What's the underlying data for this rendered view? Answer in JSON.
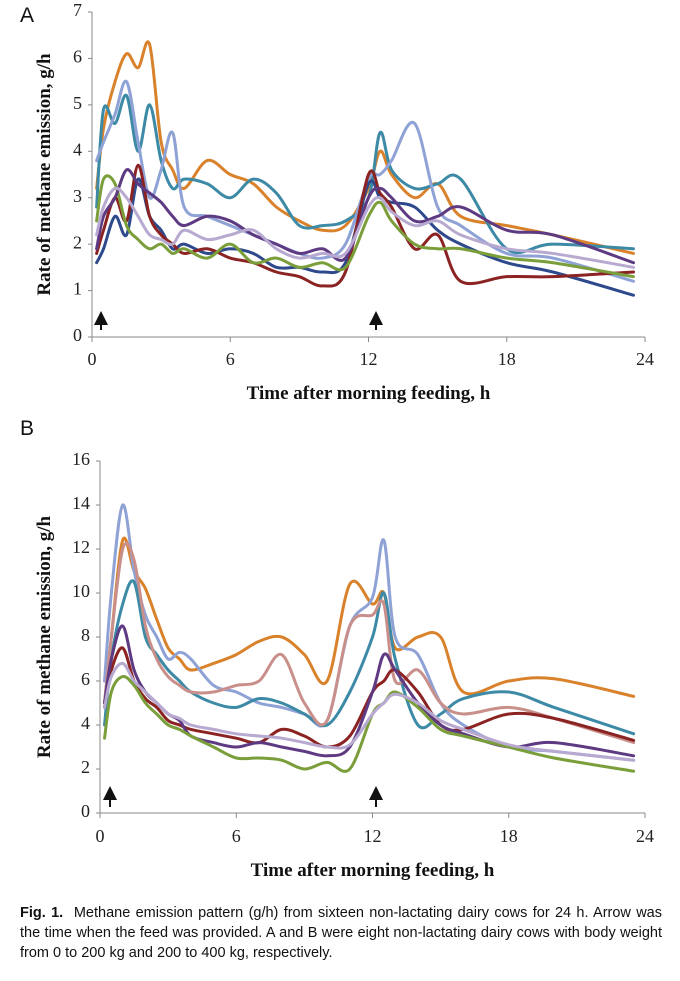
{
  "chart_data": [
    {
      "type": "line",
      "panel": "A",
      "x_label": "Time after morning feeding, h",
      "y_label": "Rate of methane emission, g/h",
      "xlim": [
        0,
        24
      ],
      "xticks": [
        0,
        6,
        12,
        18,
        24
      ],
      "ylim": [
        0,
        7
      ],
      "yticks": [
        0,
        1,
        2,
        3,
        4,
        5,
        6,
        7
      ],
      "x": [
        0.2,
        0.5,
        1,
        1.5,
        2,
        2.5,
        3,
        3.5,
        4,
        5,
        6,
        7,
        8,
        9,
        10,
        11,
        12,
        12.5,
        13,
        14,
        15,
        16,
        18,
        20,
        23.5
      ],
      "series": [
        {
          "color": "#d9822b",
          "values": [
            3.2,
            4.5,
            5.5,
            6.1,
            5.8,
            6.3,
            4.2,
            3.6,
            3.2,
            3.8,
            3.5,
            3.3,
            2.8,
            2.5,
            2.3,
            2.4,
            3.2,
            4.0,
            3.5,
            3.0,
            3.3,
            2.6,
            2.4,
            2.2,
            1.8
          ]
        },
        {
          "color": "#3d8aa6",
          "values": [
            2.8,
            4.9,
            4.6,
            5.2,
            4.0,
            5.0,
            3.8,
            3.2,
            3.4,
            3.3,
            3.0,
            3.4,
            3.1,
            2.4,
            2.4,
            2.5,
            3.0,
            4.4,
            3.6,
            3.2,
            3.3,
            3.4,
            1.9,
            2.0,
            1.9
          ]
        },
        {
          "color": "#8fa2d6",
          "values": [
            3.8,
            4.2,
            4.8,
            5.5,
            4.2,
            3.0,
            3.6,
            4.4,
            2.8,
            2.6,
            2.4,
            2.2,
            2.0,
            1.8,
            1.7,
            2.0,
            3.4,
            3.5,
            3.8,
            4.6,
            2.8,
            2.4,
            1.8,
            1.7,
            1.2
          ]
        },
        {
          "color": "#2e4a8c",
          "values": [
            1.6,
            1.9,
            2.6,
            2.2,
            3.4,
            2.6,
            2.3,
            1.9,
            2.0,
            1.8,
            1.9,
            1.8,
            1.5,
            1.5,
            1.4,
            1.6,
            3.3,
            3.0,
            2.9,
            2.8,
            2.3,
            2.0,
            1.6,
            1.4,
            0.9
          ]
        },
        {
          "color": "#8b2323",
          "values": [
            1.8,
            2.3,
            3.0,
            2.5,
            3.7,
            2.6,
            2.2,
            2.0,
            1.8,
            1.9,
            1.7,
            1.6,
            1.4,
            1.3,
            1.1,
            1.4,
            3.5,
            3.1,
            2.8,
            1.9,
            2.2,
            1.2,
            1.3,
            1.3,
            1.4
          ]
        },
        {
          "color": "#7a9e3a",
          "values": [
            2.5,
            3.4,
            3.3,
            2.4,
            2.1,
            1.9,
            2.0,
            1.8,
            1.9,
            1.7,
            2.0,
            1.6,
            1.7,
            1.5,
            1.6,
            1.5,
            2.6,
            2.9,
            2.5,
            2.0,
            1.9,
            1.9,
            1.7,
            1.6,
            1.3
          ]
        },
        {
          "color": "#5e3a83",
          "values": [
            1.9,
            2.6,
            3.0,
            3.6,
            3.3,
            3.1,
            2.9,
            2.6,
            2.4,
            2.6,
            2.5,
            2.2,
            2.0,
            1.8,
            1.9,
            1.7,
            3.0,
            3.2,
            3.0,
            2.5,
            2.6,
            2.8,
            2.3,
            2.2,
            1.6
          ]
        },
        {
          "color": "#b8a9d0",
          "values": [
            2.2,
            2.8,
            3.2,
            3.0,
            2.6,
            2.2,
            2.1,
            2.0,
            2.3,
            2.1,
            2.2,
            2.3,
            1.9,
            1.7,
            1.8,
            1.8,
            2.8,
            3.0,
            2.7,
            2.4,
            2.5,
            2.2,
            1.9,
            1.8,
            1.5
          ]
        }
      ]
    },
    {
      "type": "line",
      "panel": "B",
      "x_label": "Time after morning feeding, h",
      "y_label": "Rate of methane emission, g/h",
      "xlim": [
        0,
        24
      ],
      "xticks": [
        0,
        6,
        12,
        18,
        24
      ],
      "ylim": [
        0,
        16
      ],
      "yticks": [
        0,
        2,
        4,
        6,
        8,
        10,
        12,
        14,
        16
      ],
      "x": [
        0.2,
        0.5,
        1,
        1.5,
        2,
        2.5,
        3,
        3.5,
        4,
        5,
        6,
        7,
        8,
        9,
        10,
        11,
        12,
        12.5,
        13,
        14,
        15,
        16,
        18,
        20,
        23.5
      ],
      "series": [
        {
          "color": "#d9822b",
          "values": [
            5,
            8,
            12.4,
            11,
            10.2,
            8.8,
            7.5,
            7.0,
            6.5,
            6.8,
            7.2,
            7.8,
            8.0,
            7.2,
            6.0,
            10.4,
            9.5,
            10.0,
            7.5,
            8.0,
            8.0,
            5.5,
            6.0,
            6.1,
            5.3
          ]
        },
        {
          "color": "#8fa2d6",
          "values": [
            6,
            10,
            14,
            11,
            9,
            8,
            7,
            7.3,
            7,
            5.8,
            5.5,
            5.0,
            4.8,
            4.5,
            4.2,
            8.5,
            9.8,
            12.4,
            8,
            7.2,
            5,
            4,
            3.0,
            2.8,
            2.4
          ]
        },
        {
          "color": "#3d8aa6",
          "values": [
            4,
            7,
            9.5,
            10.5,
            8,
            7.2,
            6.5,
            6.0,
            5.5,
            5.0,
            4.8,
            5.2,
            5.0,
            4.5,
            4.0,
            5.5,
            8.0,
            10,
            7,
            4.0,
            4.5,
            5.2,
            5.5,
            4.8,
            3.6
          ]
        },
        {
          "color": "#c98f8a",
          "values": [
            5,
            8,
            12,
            11.5,
            8.5,
            7.0,
            6.2,
            5.8,
            5.5,
            5.5,
            5.8,
            6.0,
            7.2,
            5.0,
            4.2,
            8.5,
            9,
            9.5,
            6,
            6.5,
            5.0,
            4.5,
            4.8,
            4.3,
            3.2
          ]
        },
        {
          "color": "#8b2323",
          "values": [
            4.8,
            6.5,
            7.5,
            6.0,
            5.2,
            4.8,
            4.2,
            4.0,
            3.8,
            3.6,
            3.4,
            3.2,
            3.8,
            3.5,
            3.0,
            3.5,
            5.5,
            6.0,
            6.5,
            5.5,
            4.0,
            3.8,
            4.5,
            4.3,
            3.3
          ]
        },
        {
          "color": "#5e3a83",
          "values": [
            5.0,
            7.0,
            8.5,
            6.5,
            5.5,
            5.0,
            4.5,
            4.2,
            3.5,
            3.2,
            3.0,
            3.2,
            3.0,
            2.8,
            2.6,
            3.0,
            5.5,
            7.2,
            6.5,
            5.0,
            4.0,
            3.6,
            3.0,
            3.2,
            2.6
          ]
        },
        {
          "color": "#7a9e3a",
          "values": [
            3.4,
            5.5,
            6.2,
            5.8,
            5.0,
            4.5,
            4.0,
            3.8,
            3.5,
            3.0,
            2.5,
            2.5,
            2.4,
            2.0,
            2.3,
            2.0,
            4.5,
            5.0,
            5.5,
            4.8,
            3.8,
            3.5,
            3.0,
            2.5,
            1.9
          ]
        },
        {
          "color": "#b8a9d0",
          "values": [
            4.8,
            6.2,
            6.8,
            6.0,
            5.5,
            5.0,
            4.5,
            4.3,
            4.0,
            3.8,
            3.6,
            3.5,
            3.4,
            3.2,
            3.0,
            3.1,
            4.5,
            5.0,
            5.4,
            5.0,
            4.2,
            3.8,
            3.1,
            2.8,
            2.4
          ]
        }
      ]
    }
  ],
  "caption": {
    "label": "Fig. 1.",
    "text": "Methane emission pattern (g/h) from sixteen non-lactating dairy cows for 24 h. Arrow was the time when the feed was provided. A and B were eight non-lactating dairy cows with body weight from 0 to 200 kg and 200 to 400 kg, respectively."
  }
}
